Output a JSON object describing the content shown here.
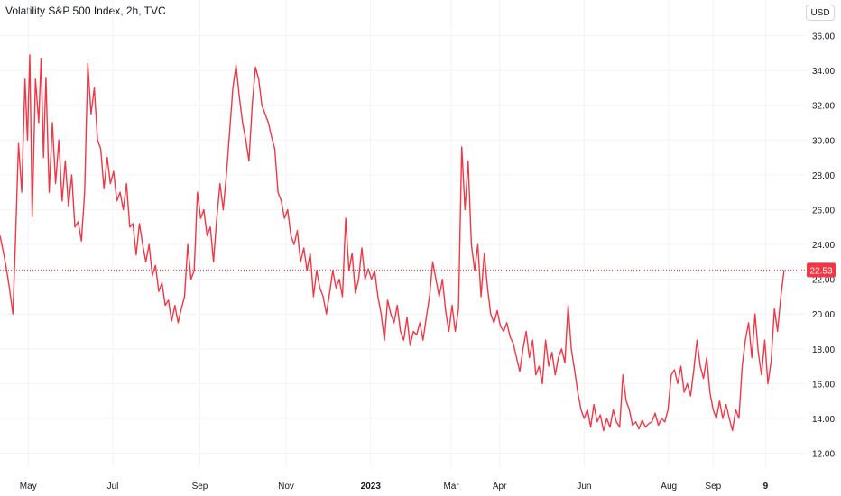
{
  "header": {
    "title": "Volatility S&P 500 Index, 2h, TVC",
    "currency": "USD"
  },
  "colors": {
    "line": "#f23645",
    "grid": "#f0f3fa",
    "axis_text": "#131722",
    "price_label_bg": "#f23645",
    "price_label_text": "#ffffff"
  },
  "chart_data": {
    "type": "line",
    "ylim": [
      11.2,
      36.6
    ],
    "xlim": [
      0,
      100
    ],
    "y_ticks": [
      "12.00",
      "14.00",
      "16.00",
      "18.00",
      "20.00",
      "22.00",
      "24.00",
      "26.00",
      "28.00",
      "30.00",
      "32.00",
      "34.00",
      "36.00"
    ],
    "x_ticks": [
      {
        "label": "May",
        "x": 3.5,
        "bold": false
      },
      {
        "label": "Jul",
        "x": 14.0,
        "bold": false
      },
      {
        "label": "Sep",
        "x": 24.8,
        "bold": false
      },
      {
        "label": "Nov",
        "x": 35.5,
        "bold": false
      },
      {
        "label": "2023",
        "x": 46.0,
        "bold": true
      },
      {
        "label": "Mar",
        "x": 56.0,
        "bold": false
      },
      {
        "label": "Apr",
        "x": 62.0,
        "bold": false
      },
      {
        "label": "Jun",
        "x": 72.5,
        "bold": false
      },
      {
        "label": "Aug",
        "x": 83.0,
        "bold": false
      },
      {
        "label": "Sep",
        "x": 88.5,
        "bold": false
      },
      {
        "label": "9",
        "x": 95.0,
        "bold": true
      }
    ],
    "last_price": 22.53,
    "last_price_label": "22.53",
    "series": [
      {
        "points": [
          [
            0.0,
            24.5
          ],
          [
            0.4,
            23.6
          ],
          [
            0.8,
            22.6
          ],
          [
            1.2,
            21.4
          ],
          [
            1.6,
            20.0
          ],
          [
            1.9,
            24.0
          ],
          [
            2.3,
            29.8
          ],
          [
            2.7,
            27.0
          ],
          [
            3.1,
            33.5
          ],
          [
            3.4,
            30.0
          ],
          [
            3.7,
            34.9
          ],
          [
            4.0,
            25.6
          ],
          [
            4.4,
            33.5
          ],
          [
            4.8,
            31.0
          ],
          [
            5.1,
            34.7
          ],
          [
            5.4,
            29.0
          ],
          [
            5.7,
            33.6
          ],
          [
            6.1,
            27.0
          ],
          [
            6.5,
            31.0
          ],
          [
            6.9,
            27.5
          ],
          [
            7.3,
            30.0
          ],
          [
            7.7,
            26.5
          ],
          [
            8.1,
            28.8
          ],
          [
            8.5,
            26.2
          ],
          [
            8.9,
            28.0
          ],
          [
            9.3,
            25.0
          ],
          [
            9.7,
            25.3
          ],
          [
            10.1,
            24.2
          ],
          [
            10.5,
            27.0
          ],
          [
            10.9,
            34.4
          ],
          [
            11.3,
            31.5
          ],
          [
            11.7,
            33.0
          ],
          [
            12.1,
            30.0
          ],
          [
            12.5,
            29.5
          ],
          [
            12.9,
            27.2
          ],
          [
            13.3,
            29.0
          ],
          [
            13.7,
            27.5
          ],
          [
            14.1,
            28.2
          ],
          [
            14.5,
            26.5
          ],
          [
            14.9,
            27.0
          ],
          [
            15.3,
            26.0
          ],
          [
            15.7,
            27.5
          ],
          [
            16.1,
            25.0
          ],
          [
            16.5,
            25.2
          ],
          [
            16.9,
            23.4
          ],
          [
            17.3,
            25.2
          ],
          [
            17.7,
            24.0
          ],
          [
            18.1,
            23.0
          ],
          [
            18.5,
            24.0
          ],
          [
            18.9,
            22.2
          ],
          [
            19.3,
            22.8
          ],
          [
            19.7,
            21.3
          ],
          [
            20.1,
            21.8
          ],
          [
            20.5,
            20.5
          ],
          [
            20.9,
            20.8
          ],
          [
            21.3,
            19.6
          ],
          [
            21.7,
            20.5
          ],
          [
            22.1,
            19.5
          ],
          [
            22.5,
            20.3
          ],
          [
            22.9,
            21.0
          ],
          [
            23.3,
            24.0
          ],
          [
            23.7,
            22.0
          ],
          [
            24.1,
            22.5
          ],
          [
            24.5,
            27.0
          ],
          [
            24.9,
            25.5
          ],
          [
            25.3,
            26.0
          ],
          [
            25.7,
            24.5
          ],
          [
            26.1,
            25.0
          ],
          [
            26.5,
            23.0
          ],
          [
            26.9,
            25.5
          ],
          [
            27.3,
            27.5
          ],
          [
            27.7,
            26.0
          ],
          [
            28.1,
            28.0
          ],
          [
            28.5,
            30.5
          ],
          [
            28.9,
            33.0
          ],
          [
            29.3,
            34.3
          ],
          [
            29.7,
            32.5
          ],
          [
            30.1,
            31.0
          ],
          [
            30.5,
            30.0
          ],
          [
            30.9,
            28.8
          ],
          [
            31.3,
            32.0
          ],
          [
            31.7,
            34.2
          ],
          [
            32.1,
            33.5
          ],
          [
            32.5,
            32.0
          ],
          [
            32.9,
            31.5
          ],
          [
            33.3,
            31.0
          ],
          [
            33.7,
            30.2
          ],
          [
            34.1,
            29.5
          ],
          [
            34.5,
            27.0
          ],
          [
            34.9,
            26.5
          ],
          [
            35.3,
            25.5
          ],
          [
            35.7,
            26.0
          ],
          [
            36.1,
            24.5
          ],
          [
            36.5,
            24.0
          ],
          [
            36.9,
            24.8
          ],
          [
            37.3,
            23.0
          ],
          [
            37.7,
            23.8
          ],
          [
            38.1,
            22.5
          ],
          [
            38.5,
            23.5
          ],
          [
            38.9,
            21.0
          ],
          [
            39.3,
            22.5
          ],
          [
            39.7,
            21.5
          ],
          [
            40.1,
            21.0
          ],
          [
            40.5,
            20.0
          ],
          [
            40.9,
            21.2
          ],
          [
            41.3,
            22.5
          ],
          [
            41.7,
            21.5
          ],
          [
            42.1,
            22.0
          ],
          [
            42.5,
            21.0
          ],
          [
            42.9,
            25.5
          ],
          [
            43.3,
            22.5
          ],
          [
            43.7,
            23.5
          ],
          [
            44.1,
            21.2
          ],
          [
            44.5,
            22.0
          ],
          [
            44.9,
            23.8
          ],
          [
            45.3,
            22.0
          ],
          [
            45.7,
            22.6
          ],
          [
            46.1,
            22.0
          ],
          [
            46.5,
            22.5
          ],
          [
            46.9,
            21.0
          ],
          [
            47.3,
            20.0
          ],
          [
            47.7,
            18.5
          ],
          [
            48.1,
            20.8
          ],
          [
            48.5,
            20.0
          ],
          [
            48.9,
            19.5
          ],
          [
            49.3,
            20.5
          ],
          [
            49.7,
            19.0
          ],
          [
            50.1,
            18.5
          ],
          [
            50.5,
            19.8
          ],
          [
            50.9,
            18.2
          ],
          [
            51.3,
            19.0
          ],
          [
            51.7,
            18.8
          ],
          [
            52.1,
            19.5
          ],
          [
            52.5,
            18.5
          ],
          [
            52.9,
            19.8
          ],
          [
            53.3,
            21.0
          ],
          [
            53.7,
            23.0
          ],
          [
            54.1,
            22.0
          ],
          [
            54.5,
            21.0
          ],
          [
            54.9,
            22.0
          ],
          [
            55.3,
            20.2
          ],
          [
            55.7,
            19.0
          ],
          [
            56.1,
            20.5
          ],
          [
            56.5,
            19.0
          ],
          [
            56.9,
            20.3
          ],
          [
            57.3,
            29.6
          ],
          [
            57.7,
            26.0
          ],
          [
            58.1,
            28.8
          ],
          [
            58.5,
            24.0
          ],
          [
            58.9,
            22.5
          ],
          [
            59.3,
            24.0
          ],
          [
            59.7,
            21.0
          ],
          [
            60.1,
            23.5
          ],
          [
            60.5,
            21.5
          ],
          [
            60.9,
            20.0
          ],
          [
            61.3,
            19.5
          ],
          [
            61.7,
            20.2
          ],
          [
            62.1,
            19.3
          ],
          [
            62.5,
            19.0
          ],
          [
            62.9,
            19.5
          ],
          [
            63.3,
            18.7
          ],
          [
            63.7,
            18.3
          ],
          [
            64.1,
            17.5
          ],
          [
            64.5,
            16.7
          ],
          [
            64.9,
            18.0
          ],
          [
            65.3,
            19.0
          ],
          [
            65.7,
            17.5
          ],
          [
            66.1,
            18.5
          ],
          [
            66.5,
            16.5
          ],
          [
            66.9,
            17.0
          ],
          [
            67.3,
            16.0
          ],
          [
            67.7,
            18.5
          ],
          [
            68.1,
            17.0
          ],
          [
            68.5,
            17.8
          ],
          [
            68.9,
            16.5
          ],
          [
            69.3,
            17.5
          ],
          [
            69.7,
            18.0
          ],
          [
            70.1,
            17.2
          ],
          [
            70.5,
            20.5
          ],
          [
            70.9,
            18.0
          ],
          [
            71.3,
            16.8
          ],
          [
            71.7,
            15.5
          ],
          [
            72.1,
            14.5
          ],
          [
            72.5,
            14.0
          ],
          [
            72.9,
            14.5
          ],
          [
            73.3,
            13.5
          ],
          [
            73.7,
            14.8
          ],
          [
            74.1,
            13.8
          ],
          [
            74.5,
            14.2
          ],
          [
            74.9,
            13.3
          ],
          [
            75.3,
            14.0
          ],
          [
            75.7,
            13.5
          ],
          [
            76.1,
            14.5
          ],
          [
            76.5,
            13.8
          ],
          [
            76.9,
            13.5
          ],
          [
            77.3,
            16.5
          ],
          [
            77.7,
            15.0
          ],
          [
            78.1,
            14.5
          ],
          [
            78.5,
            13.6
          ],
          [
            78.9,
            13.8
          ],
          [
            79.3,
            13.4
          ],
          [
            79.7,
            13.9
          ],
          [
            80.1,
            13.5
          ],
          [
            80.5,
            13.7
          ],
          [
            80.9,
            13.8
          ],
          [
            81.3,
            14.3
          ],
          [
            81.7,
            13.6
          ],
          [
            82.1,
            14.0
          ],
          [
            82.5,
            13.8
          ],
          [
            82.9,
            14.5
          ],
          [
            83.3,
            16.5
          ],
          [
            83.7,
            16.8
          ],
          [
            84.1,
            16.0
          ],
          [
            84.5,
            17.0
          ],
          [
            84.9,
            15.5
          ],
          [
            85.3,
            16.0
          ],
          [
            85.7,
            15.3
          ],
          [
            86.1,
            16.8
          ],
          [
            86.5,
            18.5
          ],
          [
            86.9,
            17.0
          ],
          [
            87.3,
            16.3
          ],
          [
            87.7,
            17.5
          ],
          [
            88.1,
            15.5
          ],
          [
            88.5,
            14.5
          ],
          [
            88.9,
            14.0
          ],
          [
            89.3,
            15.0
          ],
          [
            89.7,
            14.0
          ],
          [
            90.1,
            14.8
          ],
          [
            90.5,
            14.0
          ],
          [
            90.9,
            13.3
          ],
          [
            91.3,
            14.5
          ],
          [
            91.7,
            14.0
          ],
          [
            92.1,
            17.0
          ],
          [
            92.5,
            18.5
          ],
          [
            92.9,
            19.5
          ],
          [
            93.3,
            17.5
          ],
          [
            93.7,
            20.0
          ],
          [
            94.1,
            17.8
          ],
          [
            94.5,
            16.5
          ],
          [
            94.9,
            18.5
          ],
          [
            95.3,
            16.0
          ],
          [
            95.7,
            17.3
          ],
          [
            96.1,
            20.3
          ],
          [
            96.5,
            19.0
          ],
          [
            96.9,
            21.0
          ],
          [
            97.3,
            22.53
          ]
        ]
      }
    ]
  }
}
